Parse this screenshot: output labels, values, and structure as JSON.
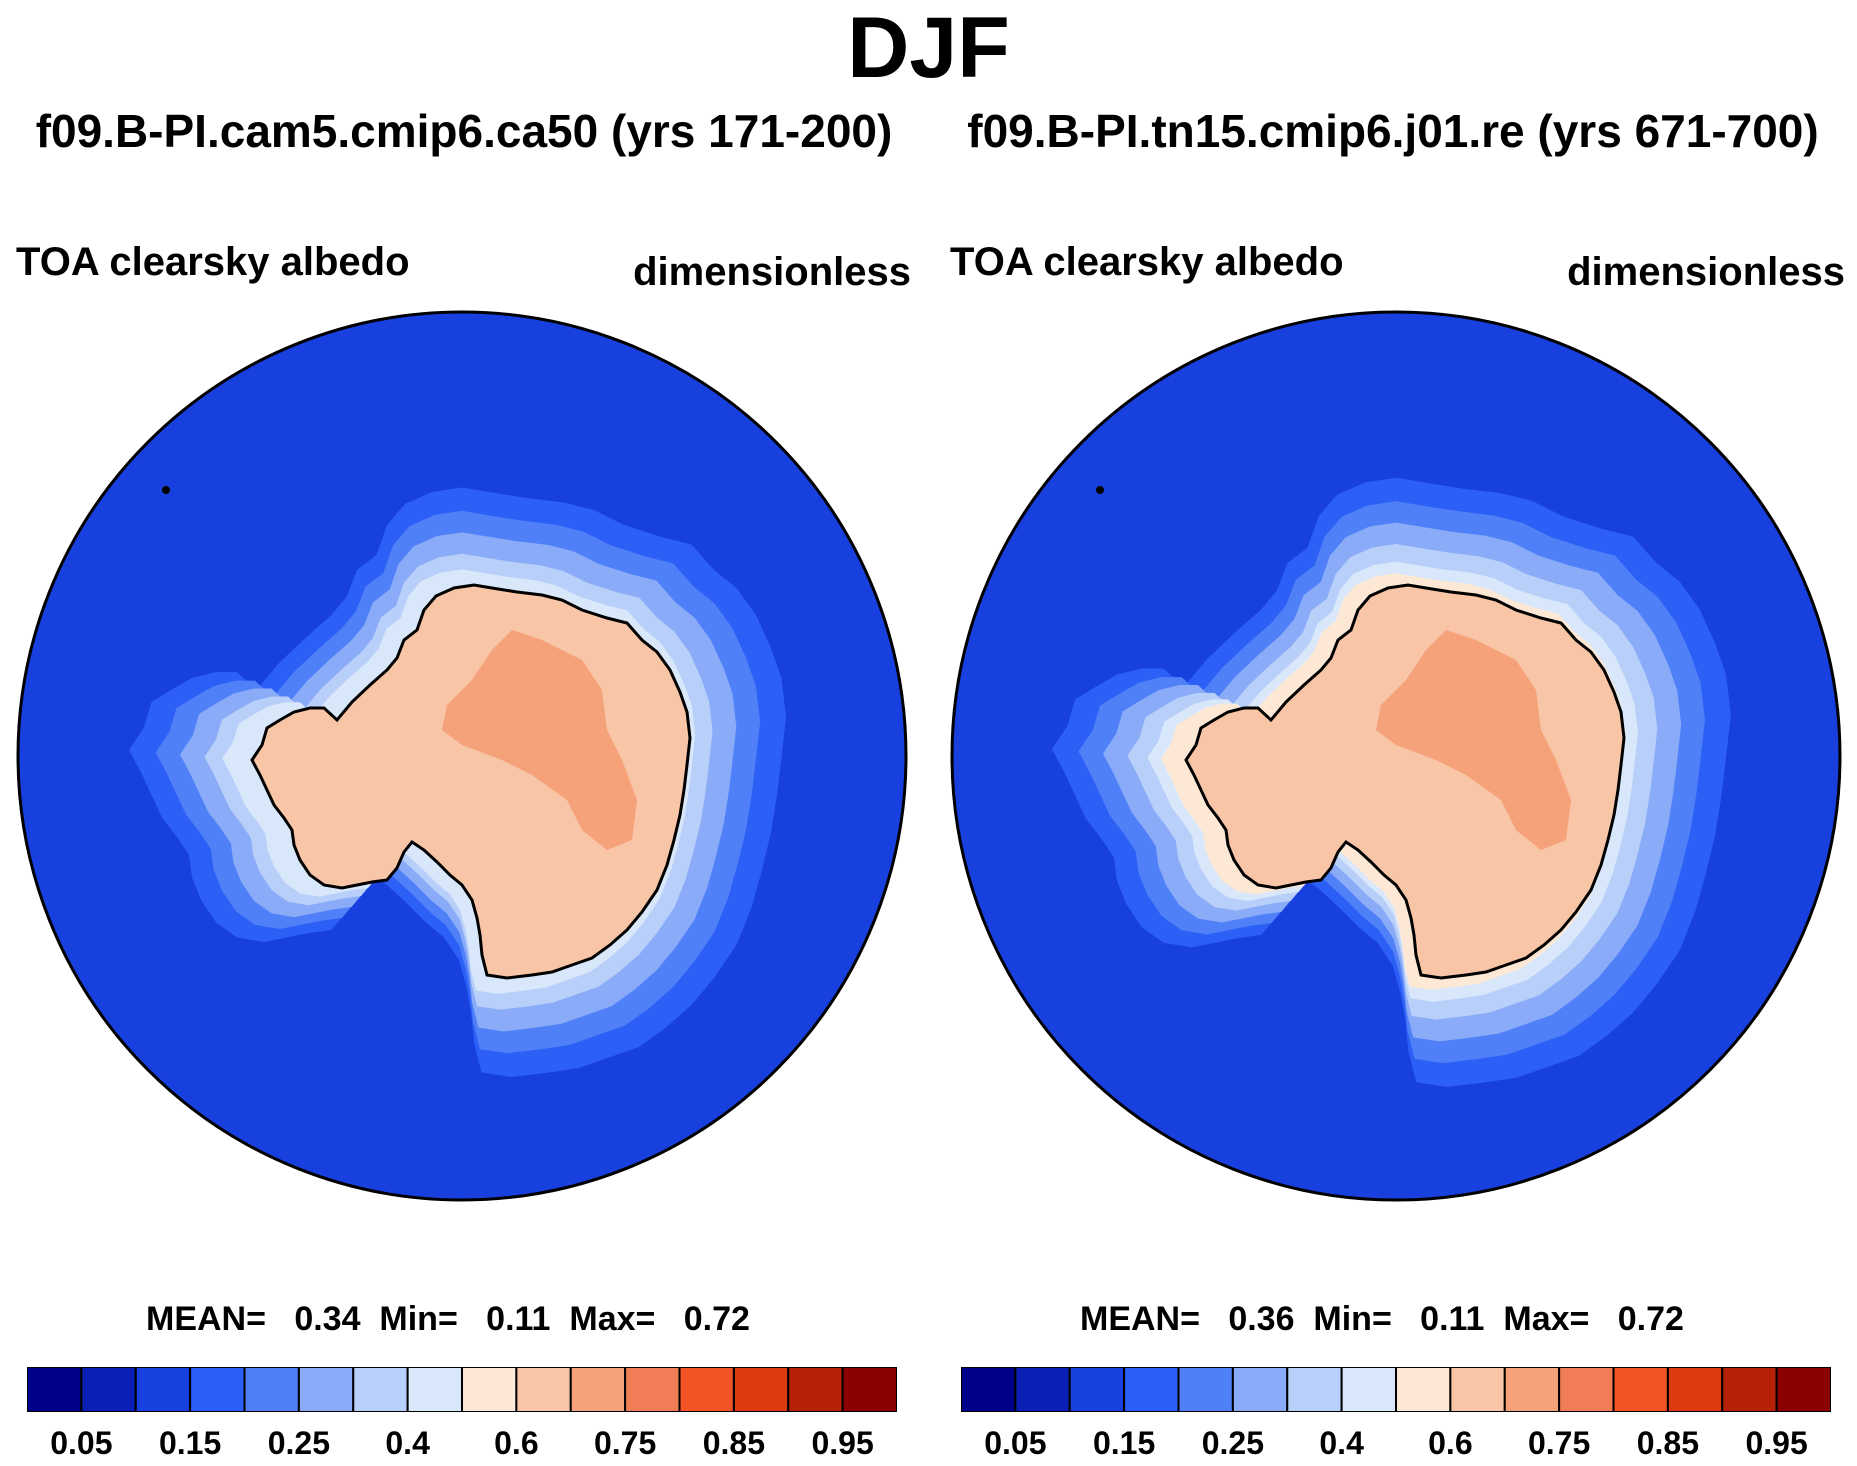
{
  "title": "DJF",
  "levels": [
    "0.05",
    "0.15",
    "0.25",
    "0.4",
    "0.6",
    "0.75",
    "0.85",
    "0.95"
  ],
  "palette": [
    "#00008b",
    "#0a1fb5",
    "#1740de",
    "#2c5ff5",
    "#4f80f7",
    "#8aabf8",
    "#b8cff9",
    "#d9e7fb",
    "#fde8d6",
    "#f8c5a6",
    "#f5a17a",
    "#f07d55",
    "#f35426",
    "#dc3a10",
    "#b52208",
    "#8b0000"
  ],
  "ocean_color": "#1740de",
  "panels": [
    {
      "case": "f09.B-PI.cam5.cmip6.ca50 (yrs 171-200)",
      "variable": "TOA clearsky albedo",
      "units": "dimensionless",
      "mean_label": "MEAN=",
      "mean_value": "0.34",
      "min_label": "Min=",
      "min_value": "0.11",
      "max_label": "Max=",
      "max_value": "0.72"
    },
    {
      "case": "f09.B-PI.tn15.cmip6.j01.re (yrs 671-700)",
      "variable": "TOA clearsky albedo",
      "units": "dimensionless",
      "mean_label": "MEAN=",
      "mean_value": "0.36",
      "min_label": "Min=",
      "min_value": "0.11",
      "max_label": "Max=",
      "max_value": "0.72"
    }
  ]
}
